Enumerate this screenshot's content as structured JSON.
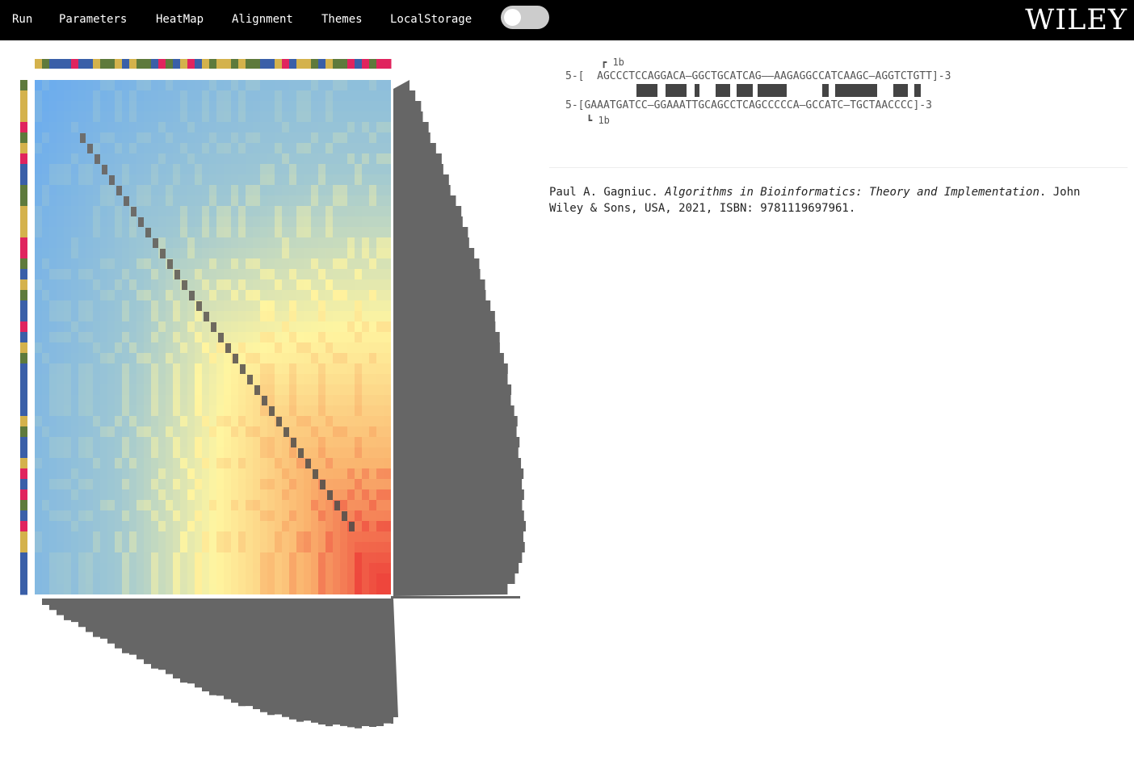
{
  "menu": {
    "items": [
      {
        "id": "run",
        "label": "Run"
      },
      {
        "id": "parameters",
        "label": "Parameters"
      },
      {
        "id": "heatmap",
        "label": "HeatMap"
      },
      {
        "id": "alignment",
        "label": "Alignment"
      },
      {
        "id": "themes",
        "label": "Themes"
      },
      {
        "id": "localstorage",
        "label": "LocalStorage"
      }
    ],
    "toggle_on": false
  },
  "brand": {
    "logo": "WILEY"
  },
  "sequences": {
    "seq1": "AGCCCTCCAGGACAGGCTGCATCAGAAGAGGCCATCAAGCAGGTCTGTT",
    "seq2": "GAAATGATCCGGAAATTGCAGCCTCAGCCCCCAGCCATCTGCTAACCCC"
  },
  "nucleotide_colors": {
    "A": "#d4b24c",
    "C": "#3a5fa8",
    "G": "#5e7a3c",
    "T": "#e0245e"
  },
  "alignment": {
    "top_marker": "┏ 1b",
    "seq1_line": "5-[  AGCCCTCCAGGACA—GGCTGCATCAG——AAGAGGCCATCAAGC—AGGTCTGTT]-3",
    "seq2_line": "5-[GAAATGATCC—GGAAATTGCAGCCTCAGCCCCCA—GCCATC—TGCTAACCCC]-3",
    "bottom_marker": "┗ 1b",
    "match_count": 23
  },
  "citation": {
    "author": "Paul A. Gagniuc.",
    "title": "Algorithms in Bioinformatics: Theory and Implementation",
    "rest": ". John Wiley & Sons, USA, 2021, ISBN: 9781119697961."
  }
}
